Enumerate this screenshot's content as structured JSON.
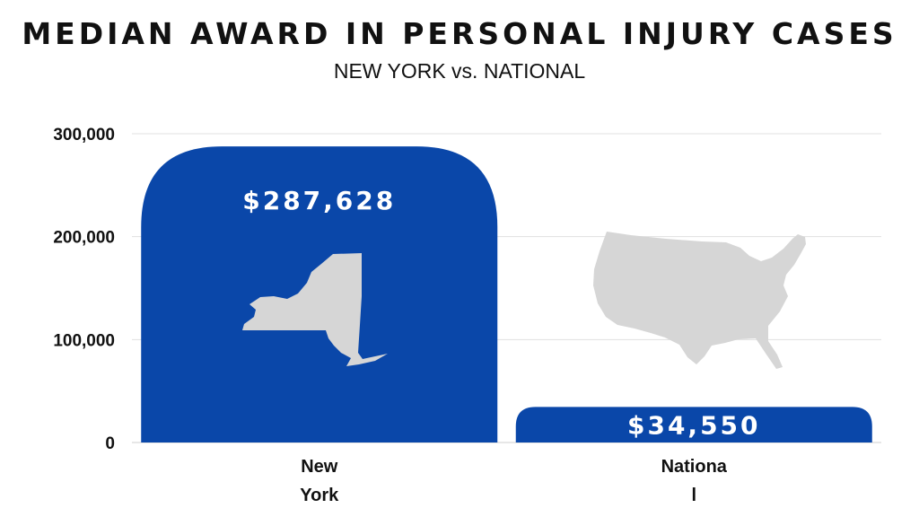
{
  "chart_data": {
    "type": "bar",
    "title": "MEDIAN AWARD IN PERSONAL INJURY CASES",
    "subtitle": "NEW YORK vs. NATIONAL",
    "categories": [
      "New York",
      "National"
    ],
    "category_label_lines": [
      [
        "New",
        "York"
      ],
      [
        "Nationa",
        "l"
      ]
    ],
    "values": [
      287628,
      34550
    ],
    "data_labels": [
      "$287,628",
      "$34,550"
    ],
    "yticks": [
      0,
      100000,
      200000,
      300000
    ],
    "ytick_labels": [
      "0",
      "100,000",
      "200,000",
      "300,000"
    ],
    "ylim": [
      0,
      300000
    ],
    "grid": true,
    "bar_color": "#0A47A9",
    "icons": [
      "new-york-state-map",
      "us-map"
    ],
    "icon_color": "#D6D6D6"
  }
}
